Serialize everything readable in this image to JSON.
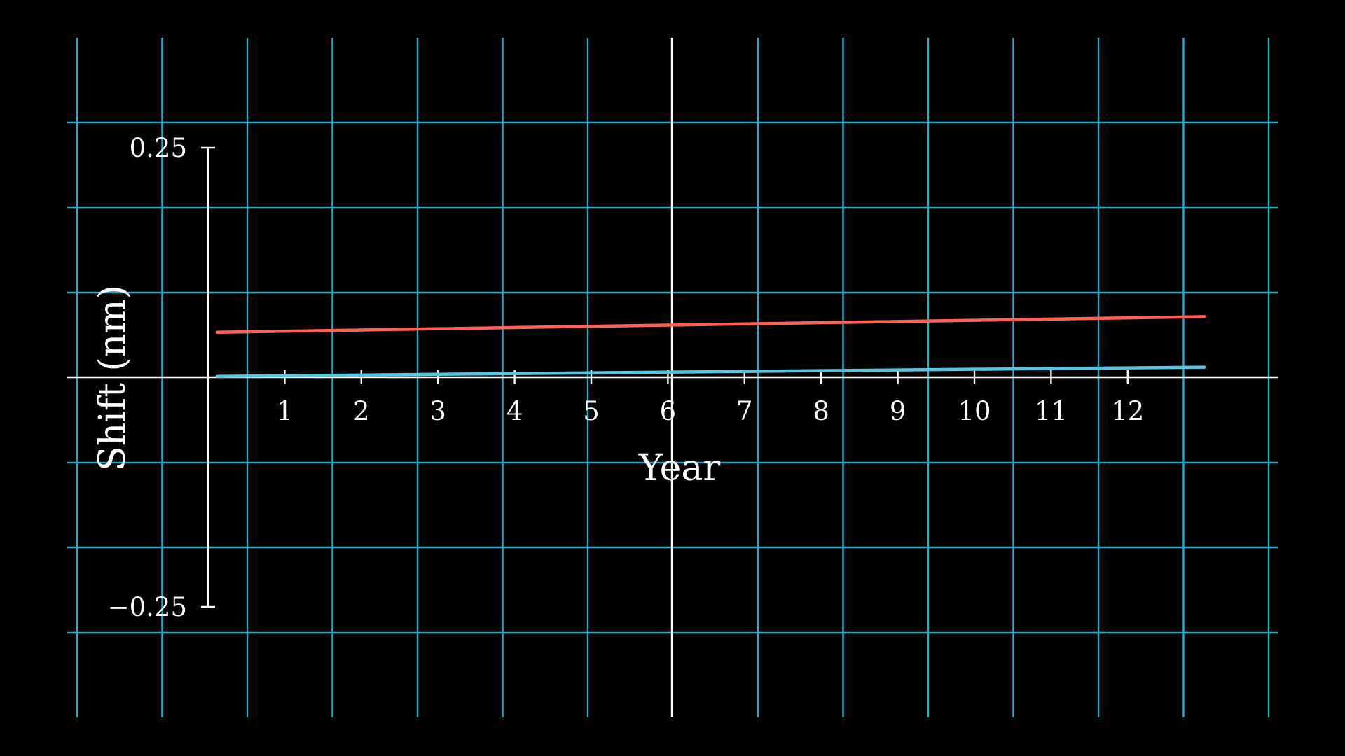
{
  "colors": {
    "background": "#000000",
    "grid": "#29abca",
    "axis": "#ffffff",
    "series_red": "#fc6255",
    "series_blue": "#58c4dd"
  },
  "chart_data": {
    "type": "line",
    "xlabel": "Year",
    "ylabel": "Shift (nm)",
    "xlim": [
      0,
      13
    ],
    "ylim": [
      -0.25,
      0.25
    ],
    "x_ticks": [
      "1",
      "2",
      "3",
      "4",
      "5",
      "6",
      "7",
      "8",
      "9",
      "10",
      "11",
      "12"
    ],
    "y_ticks": [
      "0.25",
      "−0.25"
    ],
    "grid": true,
    "legend": "none",
    "series": [
      {
        "color": "#fc6255",
        "x": [
          0.12,
          13.0
        ],
        "y": [
          0.049,
          0.066
        ]
      },
      {
        "color": "#58c4dd",
        "x": [
          0.12,
          13.0
        ],
        "y": [
          0.001,
          0.011
        ]
      }
    ]
  }
}
